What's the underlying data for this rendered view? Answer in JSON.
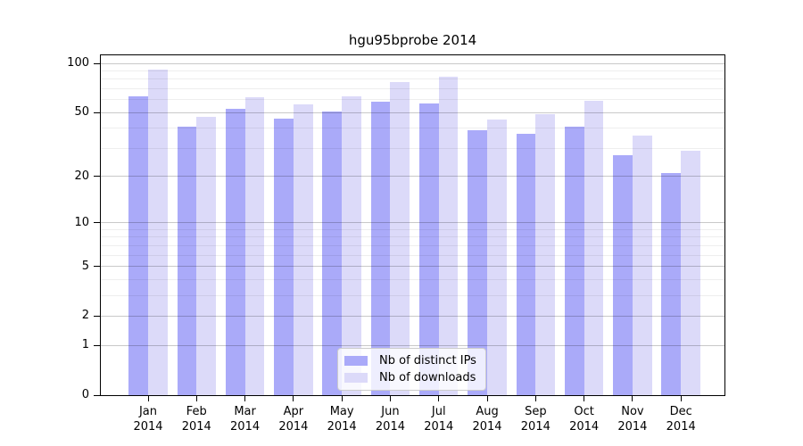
{
  "title": "hgu95bprobe 2014",
  "style": {
    "bar_color_distinct_ips": "#aaaaf9",
    "bar_color_downloads": "#dcdaf9",
    "grid_major_color": "#c8c8c8",
    "grid_minor_color": "#ededed",
    "spine_color": "#000000",
    "text_color": "#000000",
    "legend_border_color": "#cccccc"
  },
  "legend": {
    "items": [
      {
        "label": "Nb of distinct IPs",
        "series_key": "distinct-ips"
      },
      {
        "label": "Nb of downloads",
        "series_key": "downloads"
      }
    ]
  },
  "chart_data": {
    "type": "bar",
    "title": "hgu95bprobe 2014",
    "categories": [
      "Jan 2014",
      "Feb 2014",
      "Mar 2014",
      "Apr 2014",
      "May 2014",
      "Jun 2014",
      "Jul 2014",
      "Aug 2014",
      "Sep 2014",
      "Oct 2014",
      "Nov 2014",
      "Dec 2014"
    ],
    "series": [
      {
        "name": "Nb of distinct IPs",
        "key": "distinct-ips",
        "color": "#aaaaf9",
        "values": [
          63,
          41,
          53,
          46,
          51,
          58,
          57,
          39,
          37,
          41,
          27,
          21
        ]
      },
      {
        "name": "Nb of downloads",
        "key": "downloads",
        "color": "#dcdaf9",
        "values": [
          92,
          47,
          62,
          56,
          63,
          77,
          83,
          45,
          49,
          59,
          36,
          29
        ]
      }
    ],
    "xlabel": "",
    "ylabel": "",
    "yscale": "log1p",
    "ylim": [
      0,
      112
    ],
    "yticks": [
      100,
      50,
      20,
      10,
      5,
      2,
      1,
      0
    ],
    "yticks_minor": [
      3,
      4,
      6,
      7,
      8,
      9,
      30,
      40,
      60,
      70,
      80,
      90
    ],
    "grid": true,
    "legend_position": "lower center"
  }
}
